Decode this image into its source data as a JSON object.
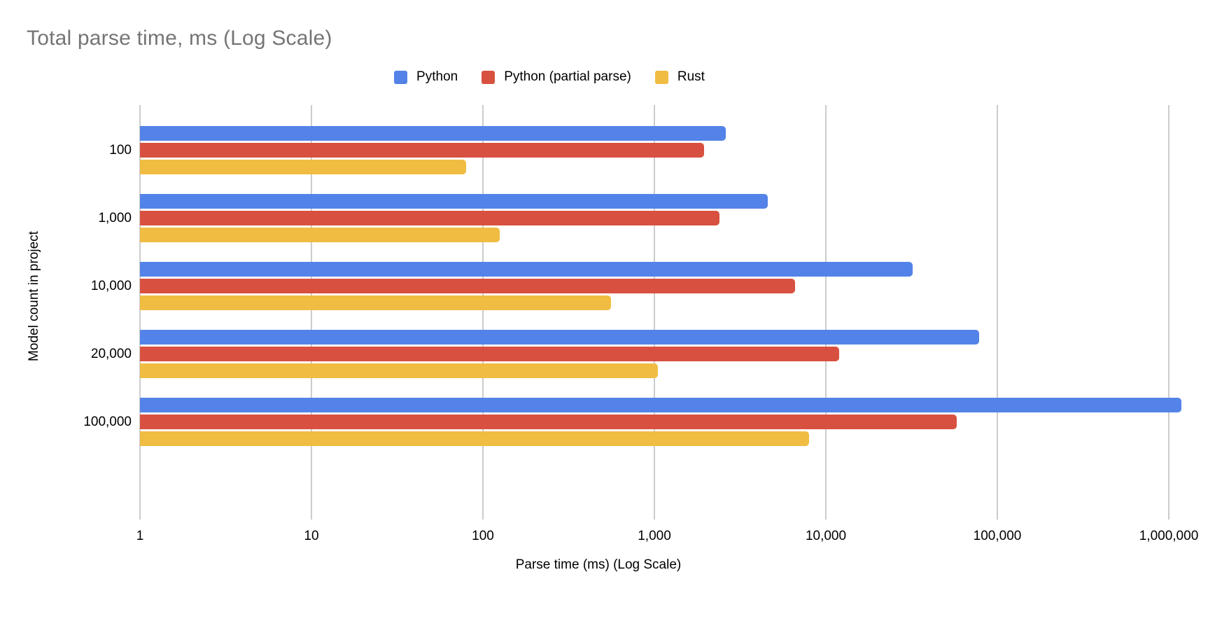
{
  "chart": {
    "title": "Total parse time, ms (Log Scale)"
  },
  "chart_data": {
    "type": "bar",
    "orientation": "horizontal",
    "title": "Total parse time, ms (Log Scale)",
    "xlabel": "Parse time (ms) (Log Scale)",
    "ylabel": "Model count in project",
    "x_scale": "log",
    "x_range": [
      1,
      1000000
    ],
    "x_ticks": [
      "1",
      "10",
      "100",
      "1,000",
      "10,000",
      "100,000",
      "1,000,000"
    ],
    "grid": true,
    "legend_position": "top",
    "gridline_color": "#cccccc",
    "categories": [
      "100",
      "1,000",
      "10,000",
      "20,000",
      "100,000"
    ],
    "series": [
      {
        "name": "Python",
        "color": "#5383E8",
        "values": [
          2600,
          4600,
          32000,
          78000,
          1180000
        ]
      },
      {
        "name": "Python (partial parse)",
        "color": "#D85140",
        "values": [
          1950,
          2400,
          6600,
          12000,
          58000
        ]
      },
      {
        "name": "Rust",
        "color": "#F0BC42",
        "values": [
          80,
          125,
          560,
          1050,
          8000
        ]
      }
    ]
  }
}
